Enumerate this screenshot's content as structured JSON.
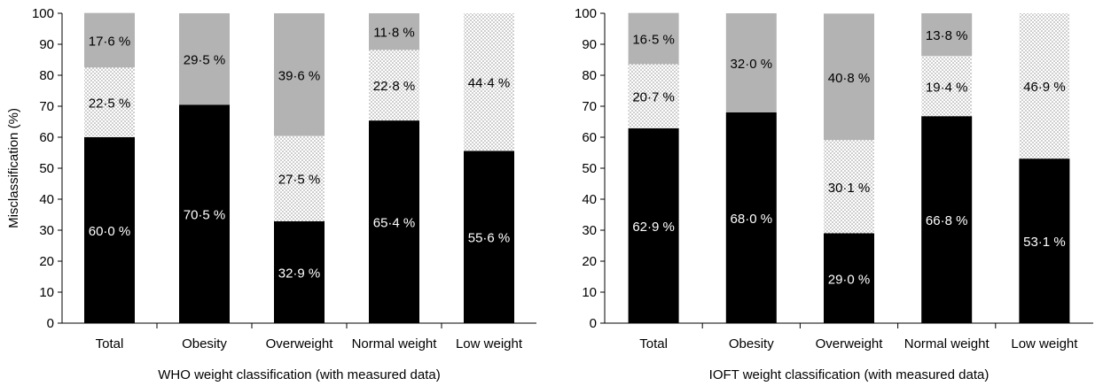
{
  "chart_data": [
    {
      "type": "bar",
      "stacked": true,
      "categories": [
        "Total",
        "Obesity",
        "Overweight",
        "Normal weight",
        "Low weight"
      ],
      "xlabel": "WHO weight classification (with measured data)",
      "ylabel": "Misclassification (%)",
      "ylim": [
        0,
        100
      ],
      "yticks": [
        0,
        10,
        20,
        30,
        40,
        50,
        60,
        70,
        80,
        90,
        100
      ],
      "grid": false,
      "series": [
        {
          "values": [
            60.0,
            70.5,
            32.9,
            65.4,
            55.6
          ],
          "labels": [
            "60·0 %",
            "70·5 %",
            "32·9 %",
            "65·4 %",
            "55·6 %"
          ],
          "color": "#000000",
          "text_color": "#ffffff"
        },
        {
          "values": [
            22.5,
            0,
            27.5,
            22.8,
            44.4
          ],
          "labels": [
            "22·5 %",
            "",
            "27·5 %",
            "22·8 %",
            "44·4 %"
          ],
          "pattern": "dotted",
          "text_color": "#000000"
        },
        {
          "values": [
            17.6,
            29.5,
            39.6,
            11.8,
            0
          ],
          "labels": [
            "17·6 %",
            "29·5 %",
            "39·6 %",
            "11·8 %",
            ""
          ],
          "color": "#b3b3b3",
          "text_color": "#000000"
        }
      ]
    },
    {
      "type": "bar",
      "stacked": true,
      "categories": [
        "Total",
        "Obesity",
        "Overweight",
        "Normal weight",
        "Low weight"
      ],
      "xlabel": "IOFT weight classification (with measured data)",
      "ylabel": "",
      "ylim": [
        0,
        100
      ],
      "yticks": [
        0,
        10,
        20,
        30,
        40,
        50,
        60,
        70,
        80,
        90,
        100
      ],
      "grid": false,
      "series": [
        {
          "values": [
            62.9,
            68.0,
            29.0,
            66.8,
            53.1
          ],
          "labels": [
            "62·9 %",
            "68·0 %",
            "29·0 %",
            "66·8 %",
            "53·1 %"
          ],
          "color": "#000000",
          "text_color": "#ffffff"
        },
        {
          "values": [
            20.7,
            0,
            30.1,
            19.4,
            46.9
          ],
          "labels": [
            "20·7 %",
            "",
            "30·1 %",
            "19·4 %",
            "46·9 %"
          ],
          "pattern": "dotted",
          "text_color": "#000000"
        },
        {
          "values": [
            16.5,
            32.0,
            40.8,
            13.8,
            0
          ],
          "labels": [
            "16·5 %",
            "32·0 %",
            "40·8 %",
            "13·8 %",
            ""
          ],
          "color": "#b3b3b3",
          "text_color": "#000000"
        }
      ]
    }
  ]
}
